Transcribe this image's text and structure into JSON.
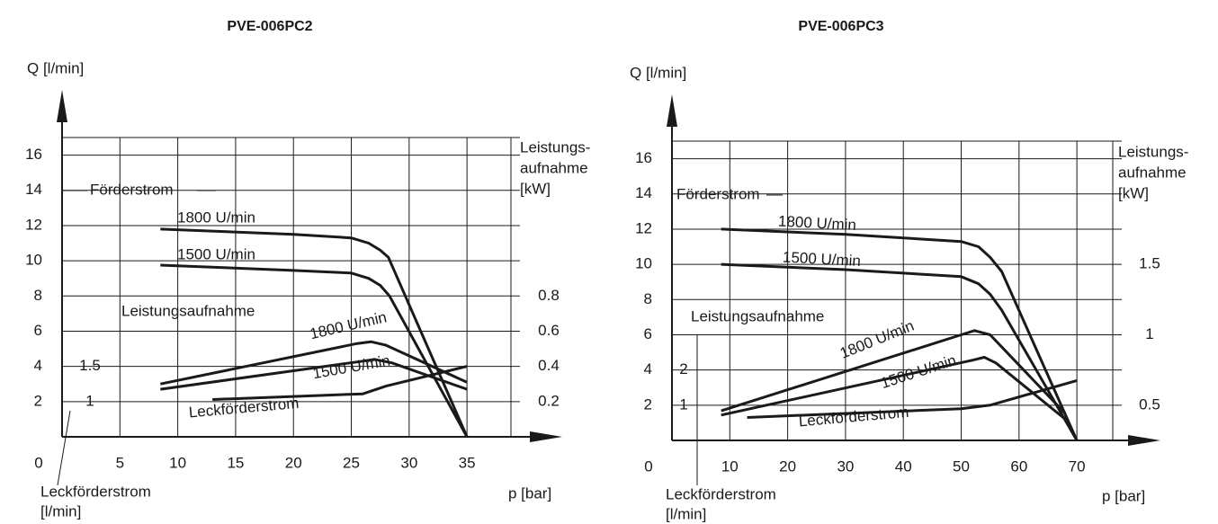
{
  "chart_data": [
    {
      "type": "line",
      "title": "PVE-006PC2",
      "ylabel": "Q [l/min]",
      "xlabel": "p [bar]",
      "y2label": [
        "Leistungs-",
        "aufnahme",
        "[kW]"
      ],
      "y3label": [
        "Leckförderstrom",
        "[l/min]"
      ],
      "annotations": [
        "Förderstrom",
        "Leistungsaufnahme"
      ],
      "xlim": [
        0,
        38.8
      ],
      "xticks": [
        0,
        5,
        10,
        15,
        20,
        25,
        30,
        35
      ],
      "ylim": [
        0,
        17
      ],
      "yticks": [
        2,
        4,
        6,
        8,
        10,
        12,
        14,
        16
      ],
      "y2lim": [
        0,
        1.7
      ],
      "y2ticks": [
        0.2,
        0.4,
        0.6,
        0.8
      ],
      "y3lim": [
        0.5,
        4.75
      ],
      "y3ticks": [
        1,
        1.5
      ],
      "grid": true,
      "series": [
        {
          "name": "1800 U/min",
          "color": "#1a1a1a",
          "x": [
            8.5,
            20,
            25,
            26.5,
            27.5,
            28.2,
            35
          ],
          "values": [
            11.8,
            11.5,
            11.3,
            11.0,
            10.6,
            10.2,
            0
          ]
        },
        {
          "name": "1500 U/min",
          "color": "#1a1a1a",
          "x": [
            8.5,
            20,
            25,
            26.5,
            27.5,
            28.3,
            35
          ],
          "values": [
            9.75,
            9.45,
            9.3,
            9.0,
            8.6,
            8.0,
            0
          ]
        },
        {
          "name": "1800 U/min",
          "color": "#1a1a1a",
          "axis": "y2",
          "x": [
            8.5,
            25.5,
            26.7,
            28,
            35
          ],
          "values": [
            0.3,
            0.53,
            0.54,
            0.52,
            0.31
          ]
        },
        {
          "name": "1500 U/min",
          "color": "#1a1a1a",
          "axis": "y2",
          "x": [
            8.5,
            26,
            27,
            28.5,
            35
          ],
          "values": [
            0.27,
            0.43,
            0.44,
            0.42,
            0.27
          ]
        },
        {
          "name": "Leckförderstrom",
          "color": "#1a1a1a",
          "axis": "y3",
          "x": [
            13,
            26,
            28,
            35
          ],
          "values": [
            1.03,
            1.11,
            1.22,
            1.5
          ]
        }
      ]
    },
    {
      "type": "line",
      "title": "PVE-006PC3",
      "ylabel": "Q [l/min]",
      "xlabel": "p [bar]",
      "y2label": [
        "Leistungs-",
        "aufnahme",
        "[kW]"
      ],
      "y3label": [
        "Leckförderstrom",
        "[l/min]"
      ],
      "annotations": [
        "Förderstrom",
        "Leistungsaufnahme"
      ],
      "xlim": [
        0,
        76.2
      ],
      "xticks": [
        0,
        10,
        20,
        30,
        40,
        50,
        60,
        70
      ],
      "ylim": [
        0,
        17
      ],
      "yticks": [
        2,
        4,
        6,
        8,
        10,
        12,
        14,
        16
      ],
      "y2lim": [
        0.25,
        2.375
      ],
      "y2ticks": [
        0.5,
        1,
        1.5
      ],
      "y3lim": [
        0,
        8.5
      ],
      "y3ticks": [
        1,
        2
      ],
      "grid": true,
      "series": [
        {
          "name": "1800 U/min",
          "color": "#1a1a1a",
          "x": [
            8.5,
            30,
            50,
            53,
            55,
            57,
            70
          ],
          "values": [
            12.0,
            11.7,
            11.3,
            11.0,
            10.4,
            9.6,
            0
          ]
        },
        {
          "name": "1500 U/min",
          "color": "#1a1a1a",
          "x": [
            8.5,
            30,
            50,
            53,
            55,
            57,
            70
          ],
          "values": [
            10.0,
            9.7,
            9.3,
            8.9,
            8.3,
            7.4,
            0
          ]
        },
        {
          "name": "1800 U/min",
          "color": "#1a1a1a",
          "axis": "y2",
          "x": [
            8.5,
            50,
            52.3,
            55,
            68
          ],
          "values": [
            0.46,
            1.0,
            1.03,
            1.0,
            0.44
          ]
        },
        {
          "name": "1500 U/min",
          "color": "#1a1a1a",
          "axis": "y2",
          "x": [
            8.5,
            52,
            54,
            56,
            68
          ],
          "values": [
            0.43,
            0.82,
            0.84,
            0.8,
            0.4
          ]
        },
        {
          "name": "Leckförderstrom",
          "color": "#1a1a1a",
          "axis": "y3",
          "x": [
            13,
            50,
            55,
            70
          ],
          "values": [
            0.65,
            0.9,
            1.0,
            1.7
          ]
        }
      ]
    }
  ]
}
